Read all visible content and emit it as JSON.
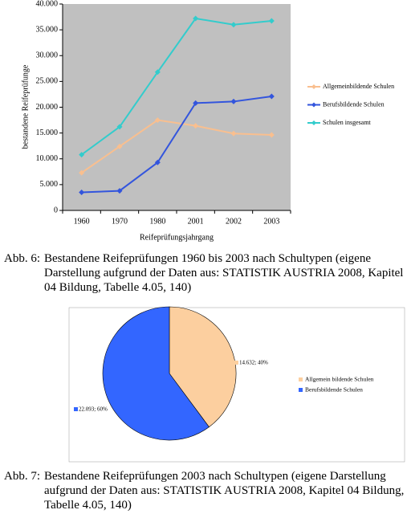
{
  "chart_data": [
    {
      "type": "line",
      "ylabel": "bestandene Reifeprüfunge",
      "xlabel": "Reifeprüfungsjahrgang",
      "categories": [
        "1960",
        "1970",
        "1980",
        "2001",
        "2002",
        "2003"
      ],
      "ylim": [
        0,
        40000
      ],
      "yticks": [
        {
          "value": 0,
          "label": "0"
        },
        {
          "value": 5000,
          "label": "5.000"
        },
        {
          "value": 10000,
          "label": "10.000"
        },
        {
          "value": 15000,
          "label": "15.000"
        },
        {
          "value": 20000,
          "label": "20.000"
        },
        {
          "value": 25000,
          "label": "25.000"
        },
        {
          "value": 30000,
          "label": "30.000"
        },
        {
          "value": 35000,
          "label": "35.000"
        },
        {
          "value": 40000,
          "label": "40.000"
        }
      ],
      "grid": false,
      "legend": "right",
      "series": [
        {
          "name": "Allgemeinbildende Schulen",
          "color": "#f9bf8f",
          "values": [
            7300,
            12400,
            17500,
            16400,
            14900,
            14632
          ]
        },
        {
          "name": "Berufsbildende Schulen",
          "color": "#3355dd",
          "values": [
            3500,
            3800,
            9300,
            20800,
            21100,
            22093
          ]
        },
        {
          "name": "Schulen insgesamt",
          "color": "#33cccc",
          "values": [
            10800,
            16200,
            26800,
            37200,
            36000,
            36725
          ]
        }
      ]
    },
    {
      "type": "pie",
      "legend": "right",
      "categories": [
        "Allgemein bildende Schulen",
        "Berufsbildende Schulen"
      ],
      "values": [
        14632,
        22093
      ],
      "value_labels": [
        "14.632; 40%",
        "22.093; 60%"
      ],
      "colors": [
        "#fccf9f",
        "#3366ff"
      ]
    }
  ],
  "captions": [
    {
      "label": "Abb. 6:",
      "text": "Bestandene Reifeprüfungen 1960 bis 2003 nach Schultypen (eigene Darstellung aufgrund der Daten aus: STATISTIK AUSTRIA 2008, Kapitel 04 Bildung, Tabelle 4.05, 140)"
    },
    {
      "label": "Abb. 7:",
      "text": "Bestandene Reifeprüfungen 2003 nach Schultypen (eigene Darstellung aufgrund der Daten aus: STATISTIK AUSTRIA 2008, Kapitel 04 Bildung, Tabelle 4.05, 140)"
    }
  ]
}
